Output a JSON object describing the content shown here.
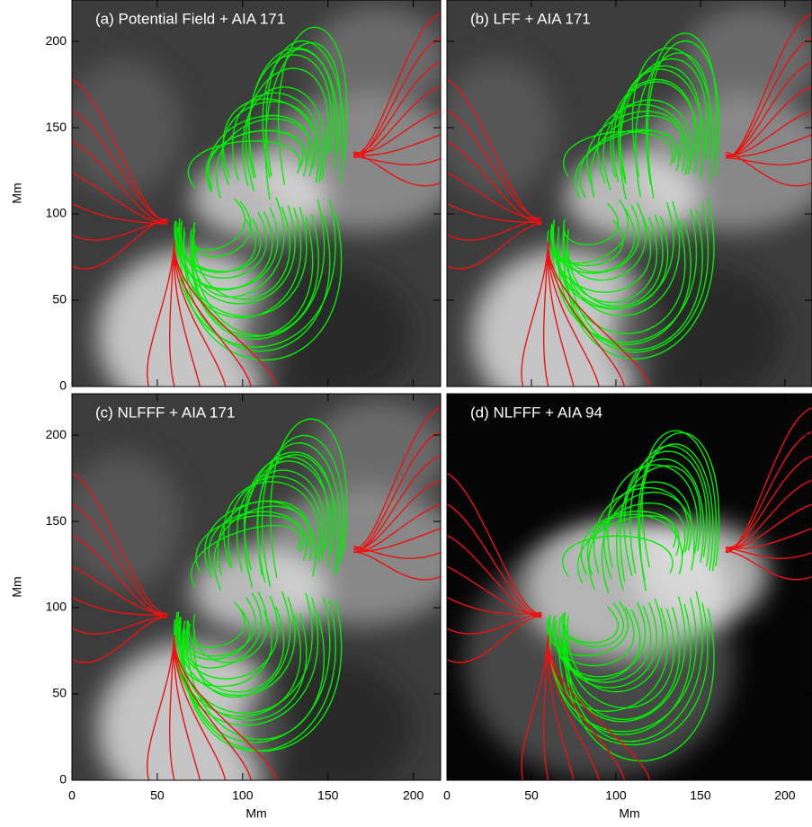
{
  "chart_data": [
    {
      "type": "image",
      "title": "(a) Potential Field + AIA 171",
      "xlim": [
        0,
        216
      ],
      "ylim": [
        0,
        224
      ],
      "xticks": [
        0,
        50,
        100,
        150,
        200
      ],
      "yticks": [
        0,
        50,
        100,
        150,
        200
      ],
      "y_label": "Mm"
    },
    {
      "type": "image",
      "title": "(b) LFF + AIA 171",
      "xlim": [
        0,
        216
      ],
      "ylim": [
        0,
        224
      ],
      "xticks": [
        0,
        50,
        100,
        150,
        200
      ],
      "yticks": [
        0,
        50,
        100,
        150,
        200
      ]
    },
    {
      "type": "image",
      "title": "(c) NLFFF + AIA 171",
      "xlim": [
        0,
        216
      ],
      "ylim": [
        0,
        224
      ],
      "xticks": [
        0,
        50,
        100,
        150,
        200
      ],
      "yticks": [
        0,
        50,
        100,
        150,
        200
      ],
      "x_label": "Mm",
      "y_label": "Mm"
    },
    {
      "type": "image",
      "title": "(d) NLFFF + AIA 94",
      "xlim": [
        0,
        216
      ],
      "ylim": [
        0,
        224
      ],
      "xticks": [
        0,
        50,
        100,
        150,
        200
      ],
      "yticks": [
        0,
        50,
        100,
        150,
        200
      ],
      "x_label": "Mm"
    }
  ]
}
